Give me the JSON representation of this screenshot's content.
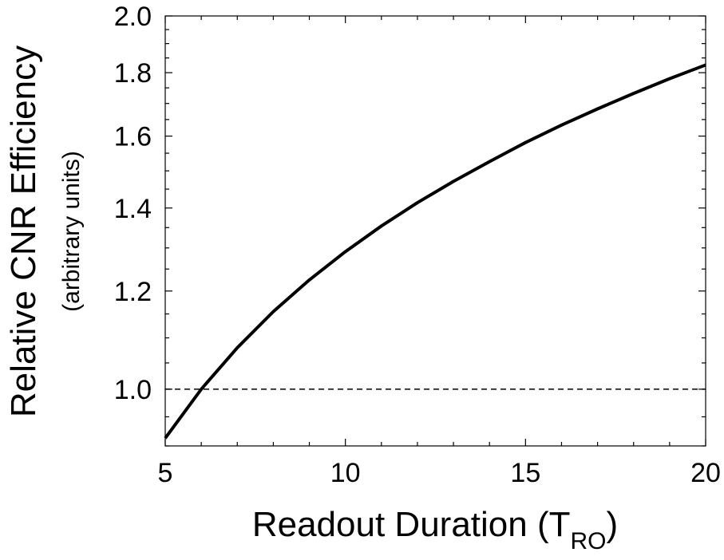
{
  "chart_data": {
    "type": "line",
    "title": "",
    "xlabel": "Readout Duration (T",
    "xlabel_subscript": "RO",
    "xlabel_suffix": ")",
    "ylabel": "Relative CNR  Efficiency",
    "ylabel_sub": "(arbitrary units)",
    "xlim": [
      5,
      20
    ],
    "ylim": [
      0.9,
      2.0
    ],
    "y_scale": "log",
    "xticks": [
      5,
      10,
      15,
      20
    ],
    "xtick_labels": [
      "5",
      "10",
      "15",
      "20"
    ],
    "yticks": [
      1.0,
      1.2,
      1.4,
      1.6,
      1.8,
      2.0
    ],
    "ytick_labels": [
      "1.0",
      "1.2",
      "1.4",
      "1.6",
      "1.8",
      "2.0"
    ],
    "grid": false,
    "reference_line": {
      "y": 1.0,
      "style": "dashed"
    },
    "series": [
      {
        "color": "#000000",
        "x": [
          5,
          6,
          7,
          8,
          9,
          10,
          11,
          12,
          13,
          14,
          15,
          16,
          17,
          18,
          19,
          20
        ],
        "y": [
          0.913,
          1.0,
          1.08,
          1.155,
          1.225,
          1.291,
          1.354,
          1.414,
          1.471,
          1.526,
          1.581,
          1.633,
          1.683,
          1.732,
          1.78,
          1.826
        ]
      }
    ]
  }
}
